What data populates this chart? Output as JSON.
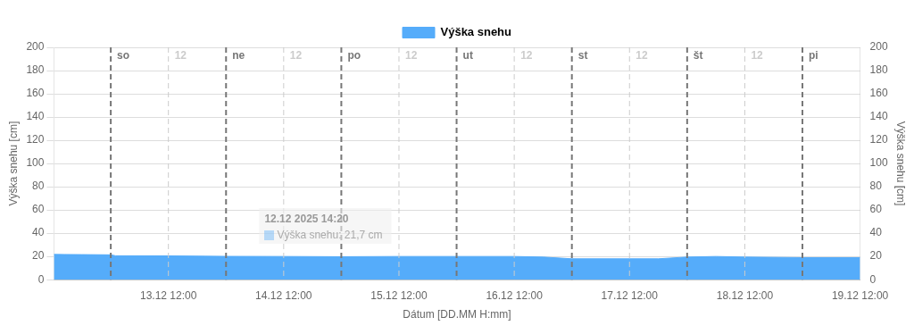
{
  "chart_data": {
    "type": "area",
    "xlabel": "Dátum [DD.MM H:mm]",
    "ylabel": "Výška snehu [cm]",
    "y2label": "Výška snehu [cm]",
    "x": [
      "2025-12-12T12:10",
      "2025-12-12T14:20",
      "2025-12-12T18:00",
      "2025-12-13T00:00",
      "2025-12-13T01:00",
      "2025-12-13T12:00",
      "2025-12-14T00:00",
      "2025-12-14T12:00",
      "2025-12-15T00:00",
      "2025-12-15T12:00",
      "2025-12-16T00:00",
      "2025-12-16T12:00",
      "2025-12-16T18:00",
      "2025-12-17T00:00",
      "2025-12-17T12:00",
      "2025-12-17T18:00",
      "2025-12-18T00:00",
      "2025-12-18T06:00",
      "2025-12-18T12:00",
      "2025-12-19T00:00",
      "2025-12-19T12:00"
    ],
    "series": [
      {
        "name": "Výška snehu",
        "color": "#55acfa",
        "values": [
          21.8,
          21.7,
          21.6,
          21.4,
          20.6,
          20.5,
          20.1,
          20,
          19.8,
          20,
          20,
          20,
          19.5,
          18,
          18,
          18,
          19.5,
          20,
          19.5,
          19,
          19
        ]
      }
    ],
    "xlim": [
      "2025-12-12T12:10",
      "2025-12-19T12:00"
    ],
    "xticks": [
      {
        "value": "2025-12-13T12:00",
        "label": "13.12 12:00"
      },
      {
        "value": "2025-12-14T12:00",
        "label": "14.12 12:00"
      },
      {
        "value": "2025-12-15T12:00",
        "label": "15.12 12:00"
      },
      {
        "value": "2025-12-16T12:00",
        "label": "16.12 12:00"
      },
      {
        "value": "2025-12-17T12:00",
        "label": "17.12 12:00"
      },
      {
        "value": "2025-12-18T12:00",
        "label": "18.12 12:00"
      },
      {
        "value": "2025-12-19T12:00",
        "label": "19.12 12:00"
      }
    ],
    "ylim": [
      0,
      200
    ],
    "yticks": [
      0,
      20,
      40,
      60,
      80,
      100,
      120,
      140,
      160,
      180,
      200
    ],
    "y2lim": [
      0,
      200
    ],
    "y2ticks": [
      0,
      20,
      40,
      60,
      80,
      100,
      120,
      140,
      160,
      180,
      200
    ],
    "grid": "y",
    "legend": "top",
    "ref_lines": [
      {
        "axis": "x",
        "value": "2025-12-13T00:00",
        "label": "so",
        "color": "#777777",
        "line_style": "dashed"
      },
      {
        "axis": "x",
        "value": "2025-12-14T00:00",
        "label": "ne",
        "color": "#777777",
        "line_style": "dashed"
      },
      {
        "axis": "x",
        "value": "2025-12-15T00:00",
        "label": "po",
        "color": "#777777",
        "line_style": "dashed"
      },
      {
        "axis": "x",
        "value": "2025-12-16T00:00",
        "label": "ut",
        "color": "#777777",
        "line_style": "dashed"
      },
      {
        "axis": "x",
        "value": "2025-12-17T00:00",
        "label": "st",
        "color": "#777777",
        "line_style": "dashed"
      },
      {
        "axis": "x",
        "value": "2025-12-18T00:00",
        "label": "št",
        "color": "#777777",
        "line_style": "dashed"
      },
      {
        "axis": "x",
        "value": "2025-12-19T00:00",
        "label": "pi",
        "color": "#777777",
        "line_style": "dashed"
      },
      {
        "axis": "x",
        "value": "2025-12-13T12:00",
        "label": "12",
        "color": "#cccccc",
        "line_style": "dashed"
      },
      {
        "axis": "x",
        "value": "2025-12-14T12:00",
        "label": "12",
        "color": "#cccccc",
        "line_style": "dashed"
      },
      {
        "axis": "x",
        "value": "2025-12-15T12:00",
        "label": "12",
        "color": "#cccccc",
        "line_style": "dashed"
      },
      {
        "axis": "x",
        "value": "2025-12-16T12:00",
        "label": "12",
        "color": "#cccccc",
        "line_style": "dashed"
      },
      {
        "axis": "x",
        "value": "2025-12-17T12:00",
        "label": "12",
        "color": "#cccccc",
        "line_style": "dashed"
      },
      {
        "axis": "x",
        "value": "2025-12-18T12:00",
        "label": "12",
        "color": "#cccccc",
        "line_style": "dashed"
      }
    ],
    "annotations": [
      "12.12 2025 14:20\nVýška snehu: 21,7 cm"
    ]
  }
}
